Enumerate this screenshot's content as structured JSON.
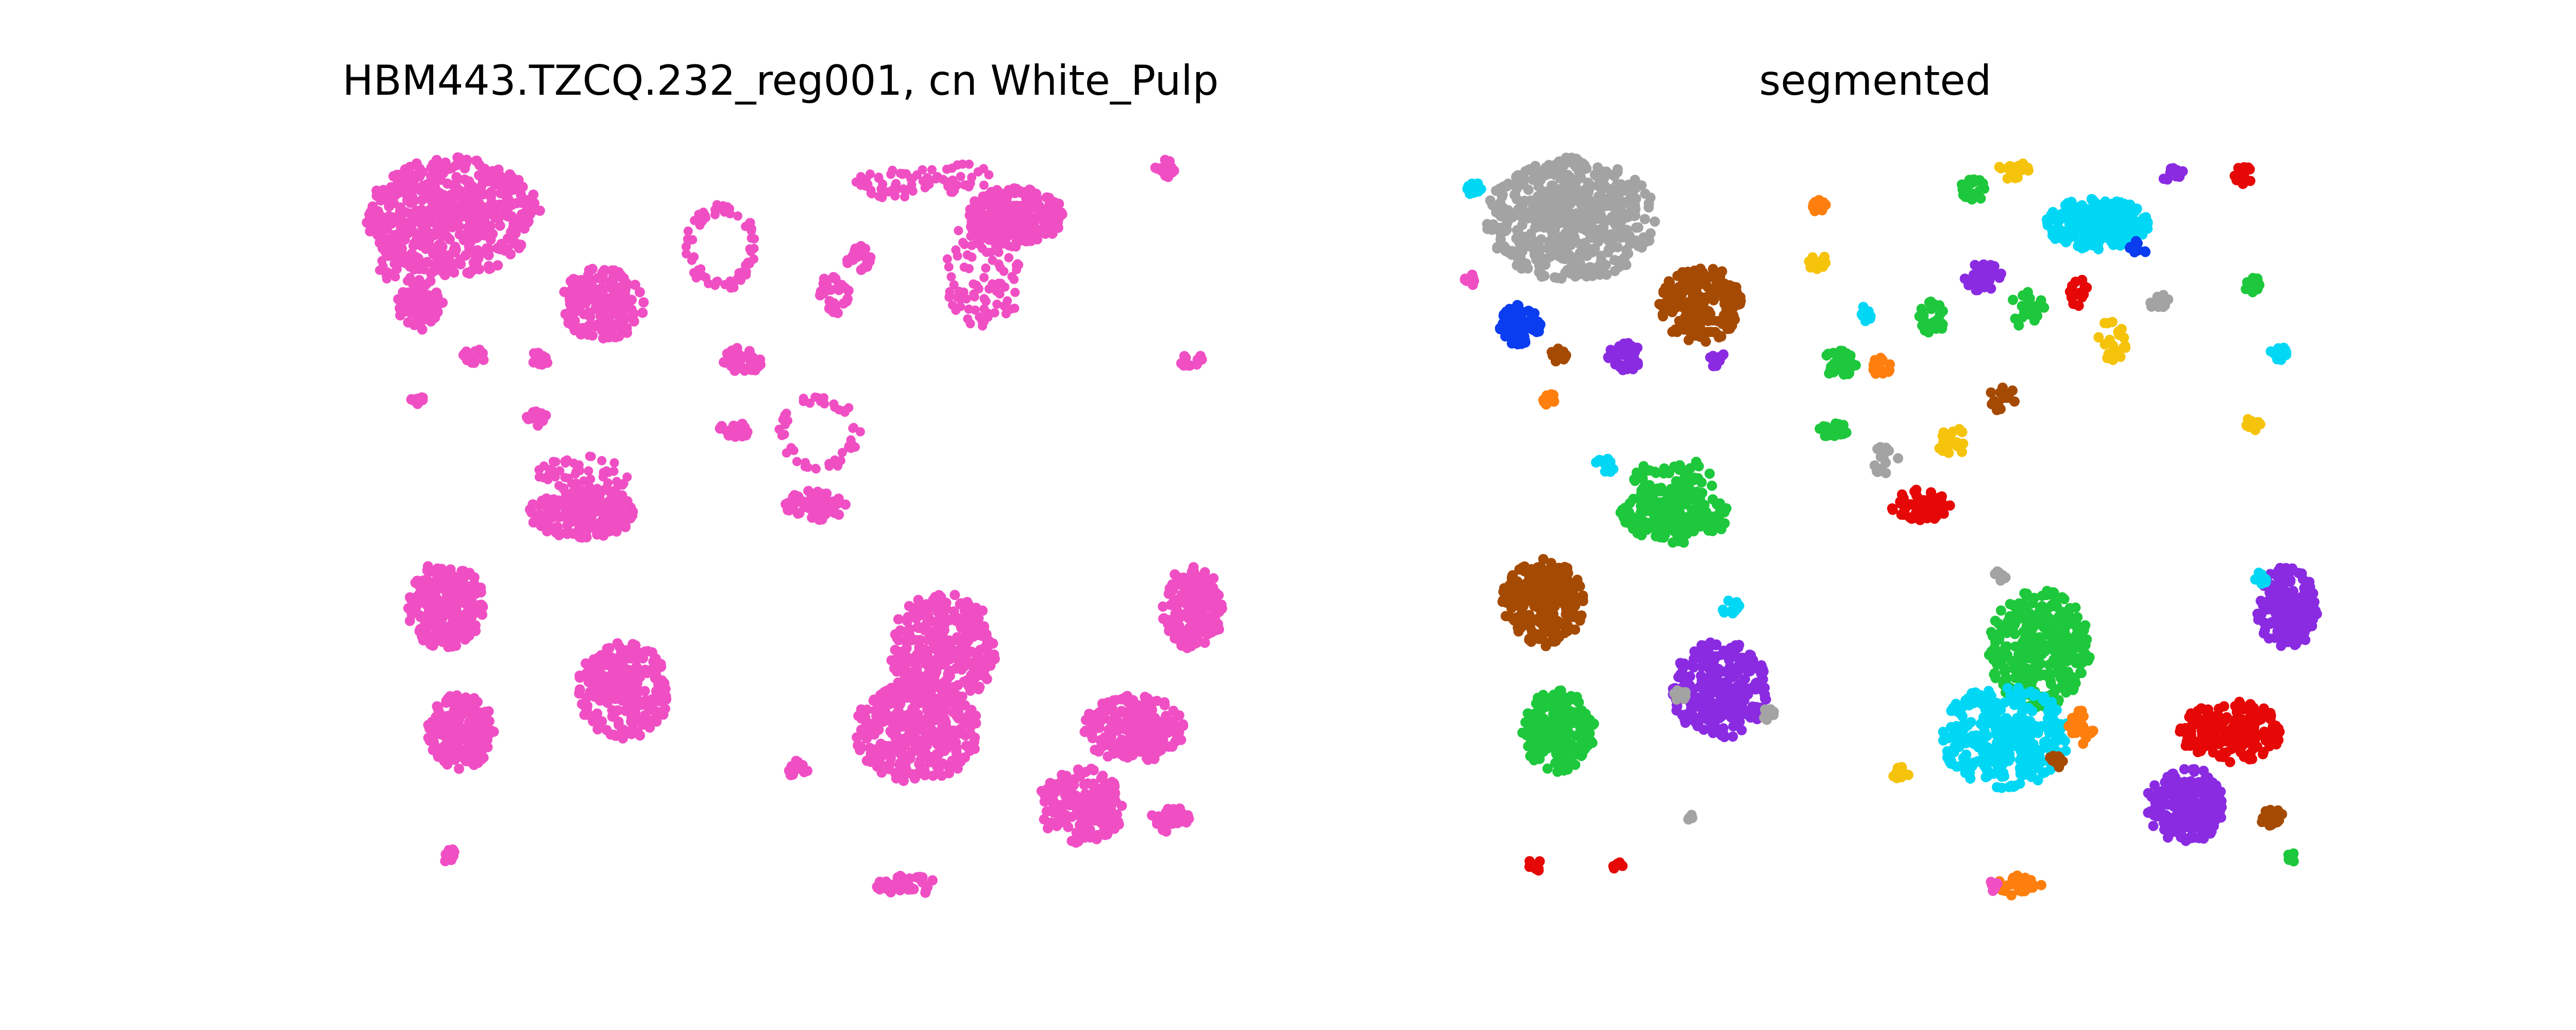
{
  "chart_data": [
    {
      "type": "scatter",
      "title": "HBM443.TZCQ.232_reg001, cn White_Pulp",
      "axes_visible": false,
      "xlim": [
        0,
        1640
      ],
      "ylim": [
        0,
        1440
      ],
      "point_color": "#f04fc4",
      "clusters": [
        {
          "x": 180,
          "y": 120,
          "rx": 170,
          "ry": 115,
          "n": 520,
          "style": "dense"
        },
        {
          "x": 115,
          "y": 290,
          "rx": 45,
          "ry": 50,
          "n": 80,
          "style": "dense"
        },
        {
          "x": 470,
          "y": 290,
          "rx": 80,
          "ry": 70,
          "n": 180,
          "style": "dense"
        },
        {
          "x": 350,
          "y": 395,
          "rx": 20,
          "ry": 15,
          "n": 15,
          "style": "dense"
        },
        {
          "x": 75,
          "y": 220,
          "rx": 40,
          "ry": 30,
          "n": 25,
          "style": "sparse"
        },
        {
          "x": 220,
          "y": 390,
          "rx": 25,
          "ry": 15,
          "n": 18,
          "style": "dense"
        },
        {
          "x": 110,
          "y": 475,
          "rx": 15,
          "ry": 10,
          "n": 10,
          "style": "dense"
        },
        {
          "x": 335,
          "y": 510,
          "rx": 25,
          "ry": 20,
          "n": 15,
          "style": "dense"
        },
        {
          "x": 430,
          "y": 695,
          "rx": 105,
          "ry": 50,
          "n": 200,
          "style": "dense"
        },
        {
          "x": 430,
          "y": 625,
          "rx": 90,
          "ry": 40,
          "n": 55,
          "style": "sparse"
        },
        {
          "x": 165,
          "y": 875,
          "rx": 75,
          "ry": 85,
          "n": 230,
          "style": "dense"
        },
        {
          "x": 510,
          "y": 1040,
          "rx": 90,
          "ry": 95,
          "n": 260,
          "style": "dense"
        },
        {
          "x": 195,
          "y": 1120,
          "rx": 65,
          "ry": 75,
          "n": 190,
          "style": "dense"
        },
        {
          "x": 700,
          "y": 180,
          "rx": 70,
          "ry": 85,
          "n": 70,
          "style": "ring"
        },
        {
          "x": 1270,
          "y": 120,
          "rx": 95,
          "ry": 55,
          "n": 240,
          "style": "dense"
        },
        {
          "x": 1210,
          "y": 225,
          "rx": 80,
          "ry": 110,
          "n": 100,
          "style": "sparse"
        },
        {
          "x": 1020,
          "y": 60,
          "rx": 60,
          "ry": 30,
          "n": 40,
          "style": "sparse"
        },
        {
          "x": 1150,
          "y": 45,
          "rx": 80,
          "ry": 30,
          "n": 35,
          "style": "sparse"
        },
        {
          "x": 920,
          "y": 270,
          "rx": 30,
          "ry": 40,
          "n": 30,
          "style": "dense"
        },
        {
          "x": 970,
          "y": 200,
          "rx": 30,
          "ry": 25,
          "n": 22,
          "style": "dense"
        },
        {
          "x": 740,
          "y": 400,
          "rx": 40,
          "ry": 25,
          "n": 40,
          "style": "dense"
        },
        {
          "x": 730,
          "y": 535,
          "rx": 35,
          "ry": 15,
          "n": 25,
          "style": "dense"
        },
        {
          "x": 890,
          "y": 540,
          "rx": 80,
          "ry": 75,
          "n": 50,
          "style": "ring"
        },
        {
          "x": 885,
          "y": 680,
          "rx": 60,
          "ry": 30,
          "n": 60,
          "style": "dense"
        },
        {
          "x": 1130,
          "y": 960,
          "rx": 105,
          "ry": 110,
          "n": 300,
          "style": "dense"
        },
        {
          "x": 1080,
          "y": 1120,
          "rx": 120,
          "ry": 100,
          "n": 320,
          "style": "dense"
        },
        {
          "x": 1500,
          "y": 1115,
          "rx": 100,
          "ry": 65,
          "n": 200,
          "style": "dense"
        },
        {
          "x": 1400,
          "y": 1265,
          "rx": 85,
          "ry": 75,
          "n": 180,
          "style": "dense"
        },
        {
          "x": 1615,
          "y": 880,
          "rx": 60,
          "ry": 80,
          "n": 170,
          "style": "dense"
        },
        {
          "x": 1570,
          "y": 1290,
          "rx": 40,
          "ry": 25,
          "n": 30,
          "style": "dense"
        },
        {
          "x": 1060,
          "y": 1420,
          "rx": 60,
          "ry": 20,
          "n": 40,
          "style": "dense"
        },
        {
          "x": 850,
          "y": 1195,
          "rx": 20,
          "ry": 20,
          "n": 12,
          "style": "dense"
        },
        {
          "x": 1610,
          "y": 400,
          "rx": 25,
          "ry": 15,
          "n": 12,
          "style": "dense"
        },
        {
          "x": 1560,
          "y": 30,
          "rx": 20,
          "ry": 20,
          "n": 15,
          "style": "dense"
        },
        {
          "x": 170,
          "y": 1360,
          "rx": 15,
          "ry": 15,
          "n": 10,
          "style": "dense"
        }
      ]
    },
    {
      "type": "scatter",
      "title": "segmented",
      "axes_visible": false,
      "xlim": [
        0,
        1640
      ],
      "ylim": [
        0,
        1440
      ],
      "colors": {
        "pink": "#f04fc4",
        "gray": "#a3a3a3",
        "brown": "#a54a02",
        "green": "#1ec83c",
        "purple": "#8a2be2",
        "cyan": "#00d7f5",
        "red": "#e60707",
        "orange": "#ff7f0e",
        "blue": "#0a3cf0",
        "yellow": "#f5c30a"
      },
      "clusters": [
        {
          "x": 220,
          "y": 125,
          "rx": 165,
          "ry": 120,
          "n": 520,
          "color": "gray"
        },
        {
          "x": 470,
          "y": 290,
          "rx": 80,
          "ry": 75,
          "n": 200,
          "color": "brown"
        },
        {
          "x": 120,
          "y": 330,
          "rx": 40,
          "ry": 40,
          "n": 70,
          "color": "blue"
        },
        {
          "x": 325,
          "y": 395,
          "rx": 35,
          "ry": 30,
          "n": 40,
          "color": "purple"
        },
        {
          "x": 505,
          "y": 400,
          "rx": 18,
          "ry": 15,
          "n": 12,
          "color": "purple"
        },
        {
          "x": 285,
          "y": 605,
          "rx": 20,
          "ry": 15,
          "n": 15,
          "color": "cyan"
        },
        {
          "x": 175,
          "y": 475,
          "rx": 15,
          "ry": 12,
          "n": 10,
          "color": "orange"
        },
        {
          "x": 200,
          "y": 390,
          "rx": 20,
          "ry": 15,
          "n": 12,
          "color": "brown"
        },
        {
          "x": 30,
          "y": 65,
          "rx": 15,
          "ry": 15,
          "n": 12,
          "color": "cyan"
        },
        {
          "x": 25,
          "y": 245,
          "rx": 15,
          "ry": 12,
          "n": 10,
          "color": "pink"
        },
        {
          "x": 420,
          "y": 700,
          "rx": 105,
          "ry": 55,
          "n": 210,
          "color": "green"
        },
        {
          "x": 420,
          "y": 630,
          "rx": 80,
          "ry": 40,
          "n": 50,
          "color": "green"
        },
        {
          "x": 165,
          "y": 870,
          "rx": 80,
          "ry": 85,
          "n": 230,
          "color": "brown"
        },
        {
          "x": 510,
          "y": 1040,
          "rx": 95,
          "ry": 95,
          "n": 260,
          "color": "purple"
        },
        {
          "x": 195,
          "y": 1120,
          "rx": 70,
          "ry": 80,
          "n": 200,
          "color": "green"
        },
        {
          "x": 605,
          "y": 1090,
          "rx": 18,
          "ry": 15,
          "n": 10,
          "color": "gray"
        },
        {
          "x": 530,
          "y": 880,
          "rx": 18,
          "ry": 15,
          "n": 12,
          "color": "cyan"
        },
        {
          "x": 430,
          "y": 1050,
          "rx": 15,
          "ry": 12,
          "n": 8,
          "color": "gray"
        },
        {
          "x": 150,
          "y": 1380,
          "rx": 15,
          "ry": 12,
          "n": 12,
          "color": "red"
        },
        {
          "x": 1240,
          "y": 135,
          "rx": 100,
          "ry": 50,
          "n": 240,
          "color": "cyan"
        },
        {
          "x": 1000,
          "y": 65,
          "rx": 25,
          "ry": 25,
          "n": 25,
          "color": "green"
        },
        {
          "x": 1020,
          "y": 240,
          "rx": 40,
          "ry": 30,
          "n": 35,
          "color": "purple"
        },
        {
          "x": 920,
          "y": 320,
          "rx": 25,
          "ry": 35,
          "n": 30,
          "color": "green"
        },
        {
          "x": 740,
          "y": 405,
          "rx": 35,
          "ry": 25,
          "n": 40,
          "color": "green"
        },
        {
          "x": 820,
          "y": 410,
          "rx": 20,
          "ry": 20,
          "n": 15,
          "color": "orange"
        },
        {
          "x": 730,
          "y": 535,
          "rx": 30,
          "ry": 15,
          "n": 25,
          "color": "green"
        },
        {
          "x": 900,
          "y": 680,
          "rx": 60,
          "ry": 30,
          "n": 70,
          "color": "red"
        },
        {
          "x": 960,
          "y": 560,
          "rx": 30,
          "ry": 30,
          "n": 20,
          "color": "yellow"
        },
        {
          "x": 830,
          "y": 590,
          "rx": 25,
          "ry": 35,
          "n": 15,
          "color": "gray"
        },
        {
          "x": 700,
          "y": 100,
          "rx": 15,
          "ry": 15,
          "n": 12,
          "color": "orange"
        },
        {
          "x": 700,
          "y": 210,
          "rx": 20,
          "ry": 15,
          "n": 15,
          "color": "yellow"
        },
        {
          "x": 790,
          "y": 310,
          "rx": 15,
          "ry": 15,
          "n": 10,
          "color": "cyan"
        },
        {
          "x": 1130,
          "y": 960,
          "rx": 100,
          "ry": 115,
          "n": 300,
          "color": "green"
        },
        {
          "x": 1060,
          "y": 1130,
          "rx": 125,
          "ry": 100,
          "n": 320,
          "color": "cyan"
        },
        {
          "x": 1210,
          "y": 1110,
          "rx": 25,
          "ry": 35,
          "n": 25,
          "color": "orange"
        },
        {
          "x": 1160,
          "y": 1180,
          "rx": 15,
          "ry": 15,
          "n": 10,
          "color": "brown"
        },
        {
          "x": 1050,
          "y": 820,
          "rx": 15,
          "ry": 12,
          "n": 10,
          "color": "gray"
        },
        {
          "x": 1500,
          "y": 1120,
          "rx": 100,
          "ry": 60,
          "n": 200,
          "color": "red"
        },
        {
          "x": 1415,
          "y": 1265,
          "rx": 80,
          "ry": 75,
          "n": 180,
          "color": "purple"
        },
        {
          "x": 1610,
          "y": 880,
          "rx": 60,
          "ry": 80,
          "n": 170,
          "color": "purple"
        },
        {
          "x": 1560,
          "y": 820,
          "rx": 15,
          "ry": 15,
          "n": 10,
          "color": "cyan"
        },
        {
          "x": 1580,
          "y": 1290,
          "rx": 25,
          "ry": 20,
          "n": 20,
          "color": "brown"
        },
        {
          "x": 1595,
          "y": 385,
          "rx": 20,
          "ry": 15,
          "n": 12,
          "color": "cyan"
        },
        {
          "x": 1545,
          "y": 525,
          "rx": 20,
          "ry": 15,
          "n": 12,
          "color": "yellow"
        },
        {
          "x": 1545,
          "y": 250,
          "rx": 20,
          "ry": 20,
          "n": 15,
          "color": "green"
        },
        {
          "x": 1525,
          "y": 40,
          "rx": 20,
          "ry": 20,
          "n": 15,
          "color": "red"
        },
        {
          "x": 1390,
          "y": 40,
          "rx": 25,
          "ry": 15,
          "n": 12,
          "color": "purple"
        },
        {
          "x": 1360,
          "y": 285,
          "rx": 20,
          "ry": 15,
          "n": 12,
          "color": "gray"
        },
        {
          "x": 1320,
          "y": 180,
          "rx": 20,
          "ry": 15,
          "n": 10,
          "color": "blue"
        },
        {
          "x": 1270,
          "y": 360,
          "rx": 30,
          "ry": 40,
          "n": 20,
          "color": "yellow"
        },
        {
          "x": 1200,
          "y": 270,
          "rx": 25,
          "ry": 30,
          "n": 15,
          "color": "red"
        },
        {
          "x": 1100,
          "y": 300,
          "rx": 40,
          "ry": 35,
          "n": 20,
          "color": "green"
        },
        {
          "x": 1060,
          "y": 475,
          "rx": 30,
          "ry": 30,
          "n": 15,
          "color": "brown"
        },
        {
          "x": 1080,
          "y": 30,
          "rx": 35,
          "ry": 20,
          "n": 20,
          "color": "yellow"
        },
        {
          "x": 1090,
          "y": 1420,
          "rx": 45,
          "ry": 20,
          "n": 35,
          "color": "orange"
        },
        {
          "x": 1040,
          "y": 1420,
          "rx": 15,
          "ry": 10,
          "n": 8,
          "color": "pink"
        },
        {
          "x": 855,
          "y": 1200,
          "rx": 20,
          "ry": 15,
          "n": 12,
          "color": "yellow"
        },
        {
          "x": 450,
          "y": 1290,
          "rx": 10,
          "ry": 10,
          "n": 6,
          "color": "gray"
        },
        {
          "x": 310,
          "y": 1380,
          "rx": 10,
          "ry": 10,
          "n": 6,
          "color": "red"
        },
        {
          "x": 1620,
          "y": 1365,
          "rx": 10,
          "ry": 10,
          "n": 8,
          "color": "green"
        }
      ]
    }
  ]
}
